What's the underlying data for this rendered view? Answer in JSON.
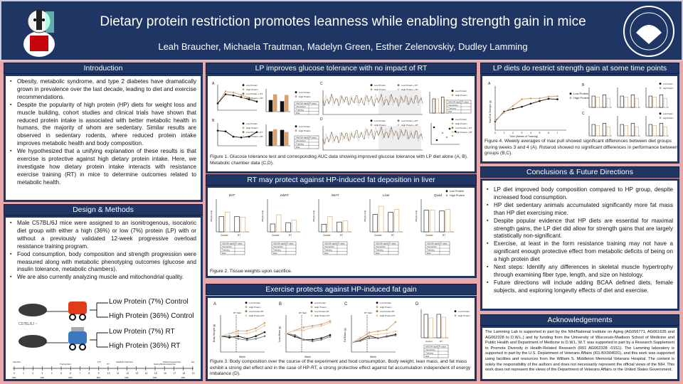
{
  "header": {
    "title": "Dietary protein restriction promotes leanness while enabling strength gain in mice",
    "authors": "Leah Braucher, Michaela Trautman, Madelyn Green, Esther Zelenovskiy, Dudley Lamming",
    "left_logo": "badger-mascot-logo",
    "right_logo": "va-seal-logo"
  },
  "colors": {
    "navy": "#1f3564",
    "background": "#e9a9ab",
    "low_protein": "#111111",
    "high_protein": "#d4a373"
  },
  "intro": {
    "title": "Introduction",
    "bullets": [
      "Obesity, metabolic syndrome, and type 2 diabetes have dramatically grown in prevalence over the last decade, leading to diet and exercise recommendations.",
      "Despite the popularity of high protein (HP) diets for weight loss and muscle building, cohort studies and clinical trials have shown that reduced protein intake is associated with better metabolic health in humans, the majority of whom are sedentary. Similar results are observed in sedentary rodents, where reduced protein intake improves metabolic health and body composition.",
      "We hypothesized that a unifying explanation of these results is that exercise is protective against high dietary protein intake. Here, we investigate how dietary protein intake interacts with resistance exercise training (RT) in mice to determine outcomes related to metabolic health."
    ]
  },
  "methods": {
    "title": "Design & Methods",
    "bullets": [
      "Male C57BL/6J mice were assigned to an isonitrogenous, isocaloric diet group with either a high (36%) or low (7%) protein (LP) with or without a previously validated 12-week progressive overload resistance training program.",
      "Food consumption, body composition and strength progression were measured along with metabolic phenotyping outcomes (glucose and insulin tolerance, metabolic chambers).",
      "We are also currently analyzing muscle and mitochondrial quality."
    ],
    "strain": "C57BL/6J ♂",
    "groups": [
      "Low Protein (7%) Control",
      "High Protein (36%) Control",
      "Low Protein (7%) RT",
      "High Protein (36%) RT"
    ],
    "timeline_ticks": [
      "0",
      "1",
      "2",
      "3",
      "4",
      "5",
      "6",
      "7",
      "8",
      "9",
      "10",
      "11",
      "12",
      "13",
      "14",
      "15",
      "16",
      "17",
      "18",
      "19"
    ],
    "timeline_events": [
      "Start Diet",
      "Training Start",
      "GTT",
      "ITT",
      "Metabolic Chambers",
      "Fasting Blood Analysis",
      "Rotarod Inverted Grip",
      "Sac",
      "Sac"
    ],
    "mri_label": "MRI"
  },
  "fig1": {
    "title": "LP improves glucose tolerance with no impact of RT",
    "panels": [
      "A",
      "B",
      "C",
      "D"
    ],
    "legend": [
      "Low Protein",
      "High Protein",
      "Low Protein + RT",
      "High Protein + RT"
    ],
    "caption": "Figure 1. Glucose tolerance test and corresponding AUC data showing improved glucose tolerance with LP diet alone (A, B). Metabolic chamber data (C,D)."
  },
  "fig2": {
    "title": "RT may protect against HP-induced fat deposition in liver",
    "legend": [
      "Low Protein",
      "High Protein"
    ],
    "ylabel": "Weight (mg)",
    "xcats": [
      "Control",
      "RT"
    ],
    "tissues": [
      {
        "name": "BAT",
        "values": [
          140,
          180,
          140,
          135
        ],
        "max": 300
      },
      {
        "name": "eWAT",
        "values": [
          600,
          1300,
          700,
          900
        ],
        "max": 2500
      },
      {
        "name": "iWAT",
        "values": [
          350,
          700,
          450,
          500
        ],
        "max": 1500
      },
      {
        "name": "Liver",
        "values": [
          850,
          1250,
          950,
          1100
        ],
        "max": 1600
      },
      {
        "name": "Quad",
        "values": [
          330,
          330,
          320,
          340
        ],
        "max": 500
      }
    ],
    "anova_rows": [
      "ANOVA table",
      "Interaction",
      "Training",
      "Diet"
    ],
    "anova_head": "P value",
    "caption": "Figure 2. Tissue weights upon sacrifice."
  },
  "fig3": {
    "title": "Exercise protects against HP-induced fat gain",
    "panels": [
      "A",
      "B",
      "C",
      "D"
    ],
    "legend": [
      "Low Protein",
      "High Protein",
      "Low Protein RT",
      "High Protein RT"
    ],
    "ylabels": [
      "Body Weight (g)",
      "Lean Mass (g)",
      "Fat Mass (g)"
    ],
    "xlabel": "Week",
    "rt_start": "RT Start",
    "legend_d": [
      "Low Protein",
      "High Protein"
    ],
    "d_xcats": [
      "Control",
      "RT"
    ],
    "caption": "Figure 3. Body composition over the course of the experiment and food consumption. Body weight, lean mass, and fat mass exhibit a strong diet effect and in the case of HP-RT, a strong protective effect against fat accumulation independent of energy imbalance (D)."
  },
  "fig4": {
    "title": "LP diets do restrict strength gain at some time points",
    "panels": [
      "A",
      "B",
      "C"
    ],
    "legend": [
      "Low Protein",
      "High Protein"
    ],
    "xlabel": "Time (Weeks of Training)",
    "ylabel": "Max Pull Strength (g)",
    "series": [
      {
        "name": "Low Protein",
        "values": [
          700,
          920,
          980,
          1030,
          1100,
          1160,
          1210,
          1200
        ]
      },
      {
        "name": "High Protein",
        "values": [
          720,
          900,
          1050,
          1200,
          1220,
          1220,
          1260,
          1270
        ]
      }
    ],
    "weeks": [
      0,
      1,
      2,
      3,
      4,
      5,
      6,
      7
    ],
    "ylim": [
      500,
      1500
    ],
    "caption": "Figure 4. Weekly averages of max pull showed significant differences between diet groups during weeks 3 and 4 (A). Rotarod showed no significant differences in performance between groups (B,C)."
  },
  "conclusions": {
    "title": "Conclusions & Future Directions",
    "bullets": [
      "LP diet improved body composition compared to HP group, despite increased food consumption.",
      "HP diet sedentary animals accumulated significantly more fat mass than HP diet exercising mice.",
      "Despite popular evidence that HP diets are essential for maximal strength gains, the LP diet did allow for strength gains that are largely statistically non-significant.",
      "Exercise, at least in the form resistance training may not have a significant enough protective effect from metabolic deficits of being on a high protein diet",
      "Next steps: Identify any differences in skeletal muscle hypertrophy through examining fiber type, length, and size on histology.",
      "Future directions will include adding BCAA defined diets, female subjects, and exploring longevity effects of diet and exercise."
    ]
  },
  "ack": {
    "title": "Acknowledgements",
    "text": "The Lamming Lab is supported in part by the NIH/National Institute on Aging (AG056771, AG061635 and AG062328 to D.W.L.) and by funding from the University of Wisconsin-Madison School of Medicine and Public Health and Department of Medicine to D.W.L. M.T. was supported in part by a Research Supplement to Promote Diversity in Health-Related Research (R01 AG062328 -01S1). The Lamming laboratory is supported in part by the U.S. Department of Veterans Affairs (I01-BX004031), and this work was supported using facilities and resources from the William S. Middleton Memorial Veterans Hospital. The content is solely the responsibility of the authors and does not necessarily represent the official views of the NIH. This work does not represent the views of the Department of Veterans Affairs or the United States Government."
  }
}
